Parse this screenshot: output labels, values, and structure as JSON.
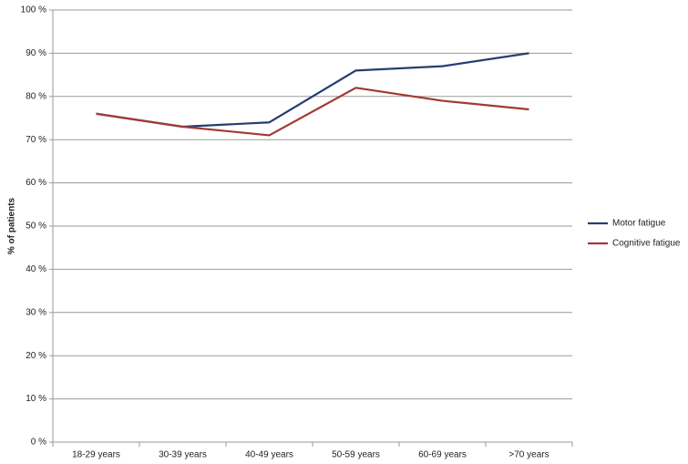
{
  "chart_data": {
    "type": "line",
    "y_label": "% of patients",
    "categories": [
      "18-29 years",
      "30-39 years",
      "40-49 years",
      "50-59 years",
      "60-69 years",
      ">70 years"
    ],
    "series": [
      {
        "name": "Motor fatigue",
        "color": "#243f72",
        "values": [
          76,
          73,
          74,
          86,
          87,
          90
        ]
      },
      {
        "name": "Cognitive fatigue",
        "color": "#a13a34",
        "values": [
          76,
          73,
          71,
          82,
          79,
          77
        ]
      }
    ],
    "ylim": [
      0,
      100
    ],
    "yticks": [
      {
        "value": 0,
        "label": "0 %"
      },
      {
        "value": 10,
        "label": "10 %"
      },
      {
        "value": 20,
        "label": "20 %"
      },
      {
        "value": 30,
        "label": "30 %"
      },
      {
        "value": 40,
        "label": "40 %"
      },
      {
        "value": 50,
        "label": "50 %"
      },
      {
        "value": 60,
        "label": "60 %"
      },
      {
        "value": 70,
        "label": "70 %"
      },
      {
        "value": 80,
        "label": "80 %"
      },
      {
        "value": 90,
        "label": "90 %"
      },
      {
        "value": 100,
        "label": "100 %"
      }
    ],
    "grid": true,
    "legend": "right"
  }
}
